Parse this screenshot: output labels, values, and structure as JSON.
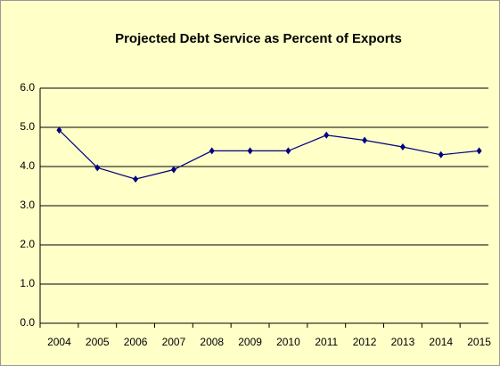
{
  "chart_data": {
    "type": "line",
    "title": "Projected Debt Service as Percent of Exports",
    "categories": [
      "2004",
      "2005",
      "2006",
      "2007",
      "2008",
      "2009",
      "2010",
      "2011",
      "2012",
      "2013",
      "2014",
      "2015"
    ],
    "series": [
      {
        "color": "#000080",
        "values": [
          4.93,
          3.97,
          3.68,
          3.92,
          4.4,
          4.4,
          4.4,
          4.8,
          4.67,
          4.5,
          4.3,
          4.4
        ]
      }
    ],
    "ylim": [
      0,
      6
    ],
    "yticks": [
      {
        "value": 0,
        "label": "0.0"
      },
      {
        "value": 1,
        "label": "1.0"
      },
      {
        "value": 2,
        "label": "2.0"
      },
      {
        "value": 3,
        "label": "3.0"
      },
      {
        "value": 4,
        "label": "4.0"
      },
      {
        "value": 5,
        "label": "5.0"
      },
      {
        "value": 6,
        "label": "6.0"
      }
    ],
    "grid": true
  }
}
